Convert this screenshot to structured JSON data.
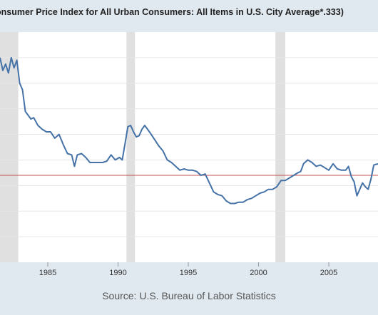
{
  "header": {
    "title": "onsumer Price Index for All Urban Consumers: All Items in U.S. City Average*.333)"
  },
  "footer": {
    "source": "Source: U.S. Bureau of Labor Statistics"
  },
  "colors": {
    "background": "#e1e9f0",
    "plot_area": "#ffffff",
    "recession": "#e0e0e0",
    "series_line": "#4572a7",
    "reference_line": "#c0504d"
  },
  "chart_data": {
    "type": "line",
    "title": "onsumer Price Index for All Urban Consumers: All Items in U.S. City Average*.333)",
    "xlabel": "",
    "ylabel": "",
    "xlim": [
      1981.6,
      2008.5
    ],
    "ylim": [
      0.2,
      2.0
    ],
    "y_ticks_labeled": false,
    "x_ticks": [
      1985,
      1990,
      1995,
      2000,
      2005
    ],
    "x_tick_labels": [
      "1985",
      "1990",
      "1995",
      "2000",
      "2005"
    ],
    "grid": "horizontal",
    "recessions": [
      [
        1981.6,
        1982.9
      ],
      [
        1990.6,
        1991.2
      ],
      [
        2001.2,
        2001.9
      ]
    ],
    "reference_line": {
      "y": 0.88,
      "color": "#c0504d"
    },
    "series": [
      {
        "x": [
          1981.6,
          1981.8,
          1982.0,
          1982.2,
          1982.4,
          1982.6,
          1982.8,
          1983.0,
          1983.2,
          1983.4,
          1983.6,
          1983.8,
          1984.0,
          1984.3,
          1984.6,
          1984.9,
          1985.2,
          1985.5,
          1985.8,
          1986.1,
          1986.4,
          1986.7,
          1986.9,
          1987.1,
          1987.4,
          1987.7,
          1988.0,
          1988.3,
          1988.6,
          1988.9,
          1989.2,
          1989.5,
          1989.8,
          1990.1,
          1990.3,
          1990.5,
          1990.7,
          1990.9,
          1991.1,
          1991.3,
          1991.5,
          1991.7,
          1991.9,
          1992.1,
          1992.3,
          1992.6,
          1992.9,
          1993.2,
          1993.5,
          1993.8,
          1994.1,
          1994.4,
          1994.7,
          1995.0,
          1995.3,
          1995.6,
          1995.9,
          1996.2,
          1996.5,
          1996.8,
          1997.1,
          1997.4,
          1997.7,
          1998.0,
          1998.3,
          1998.6,
          1998.9,
          1999.2,
          1999.5,
          1999.8,
          2000.1,
          2000.4,
          2000.7,
          2001.0,
          2001.3,
          2001.6,
          2001.9,
          2002.2,
          2002.5,
          2002.8,
          2003.0,
          2003.2,
          2003.5,
          2003.8,
          2004.1,
          2004.4,
          2004.7,
          2005.0,
          2005.3,
          2005.6,
          2005.9,
          2006.2,
          2006.4,
          2006.6,
          2006.8,
          2007.0,
          2007.2,
          2007.4,
          2007.6,
          2007.8,
          2008.0,
          2008.2,
          2008.5
        ],
        "values": [
          1.8,
          1.7,
          1.75,
          1.68,
          1.8,
          1.72,
          1.78,
          1.6,
          1.55,
          1.38,
          1.35,
          1.32,
          1.33,
          1.27,
          1.24,
          1.22,
          1.22,
          1.17,
          1.2,
          1.12,
          1.05,
          1.04,
          0.95,
          1.04,
          1.05,
          1.02,
          0.98,
          0.98,
          0.98,
          0.98,
          0.99,
          1.04,
          1.0,
          1.02,
          1.0,
          1.13,
          1.26,
          1.27,
          1.22,
          1.18,
          1.19,
          1.24,
          1.27,
          1.24,
          1.21,
          1.16,
          1.11,
          1.07,
          1.0,
          0.98,
          0.95,
          0.92,
          0.93,
          0.92,
          0.92,
          0.91,
          0.88,
          0.89,
          0.82,
          0.75,
          0.73,
          0.72,
          0.68,
          0.66,
          0.66,
          0.67,
          0.67,
          0.69,
          0.7,
          0.72,
          0.74,
          0.75,
          0.77,
          0.77,
          0.79,
          0.84,
          0.84,
          0.86,
          0.88,
          0.9,
          0.91,
          0.97,
          1.0,
          0.98,
          0.95,
          0.96,
          0.94,
          0.92,
          0.97,
          0.93,
          0.92,
          0.92,
          0.95,
          0.87,
          0.83,
          0.72,
          0.77,
          0.82,
          0.79,
          0.77,
          0.85,
          0.96,
          0.97
        ]
      }
    ]
  }
}
